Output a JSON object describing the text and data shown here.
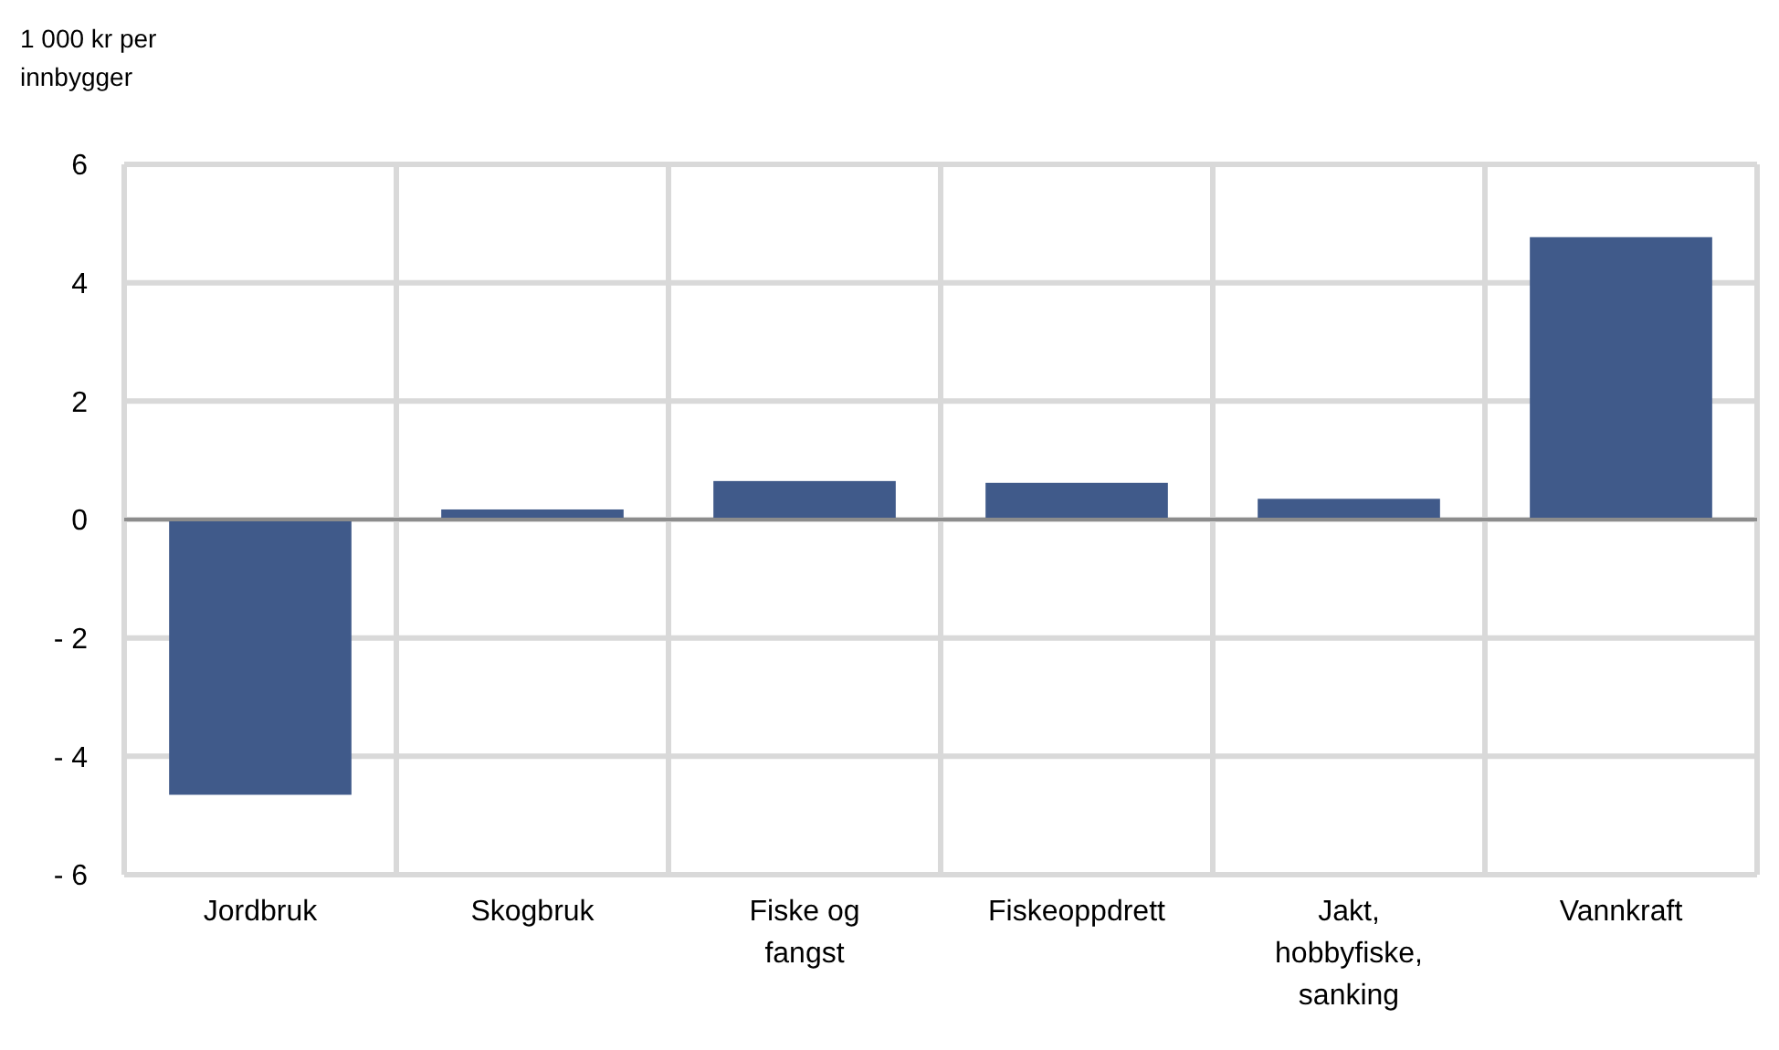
{
  "chart_data": {
    "type": "bar",
    "ylabel": "1 000 kr per innbygger",
    "categories": [
      "Jordbruk",
      "Skogbruk",
      "Fiske og fangst",
      "Fiskeoppdrett",
      "Jakt, hobbyfiske, sanking",
      "Vannkraft"
    ],
    "values": [
      -4.65,
      0.17,
      0.65,
      0.62,
      0.35,
      4.77
    ],
    "color": "#405a8a",
    "ylim": [
      -6,
      6
    ],
    "yticks": [
      6,
      4,
      2,
      0,
      {
        "value": -2,
        "label": "- 2"
      },
      {
        "value": -4,
        "label": "- 4"
      },
      {
        "value": -6,
        "label": "- 6"
      }
    ],
    "grid": true
  }
}
